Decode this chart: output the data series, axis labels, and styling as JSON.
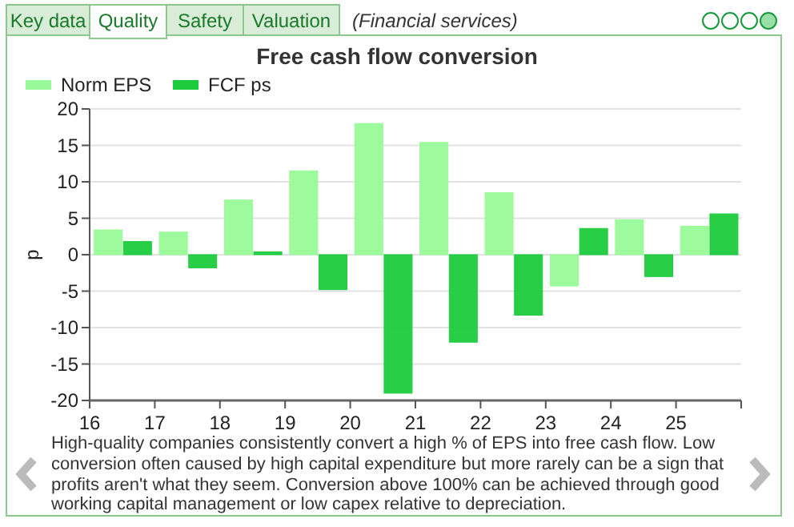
{
  "chart_data": {
    "type": "bar",
    "title": "Free cash flow conversion",
    "subtitle": "(Financial services)",
    "ylabel": "p",
    "x": [
      16.5,
      17.5,
      18.5,
      19.5,
      20.5,
      21.5,
      22.5,
      23.5,
      24.5,
      25.5
    ],
    "series": [
      {
        "name": "Norm EPS",
        "color": "#98fa98",
        "values": [
          3.4,
          3.1,
          7.5,
          11.5,
          18,
          15.4,
          8.5,
          -4.3,
          4.8,
          3.9
        ]
      },
      {
        "name": "FCF ps",
        "color": "#1ccc3c",
        "values": [
          1.8,
          -1.8,
          0.4,
          -4.8,
          -19,
          -12,
          -8.3,
          3.6,
          -3,
          5.6
        ]
      }
    ],
    "xlim": [
      16,
      26
    ],
    "xticks": [
      16,
      17,
      18,
      19,
      20,
      21,
      22,
      23,
      24,
      25
    ],
    "ylim": [
      -20,
      20
    ],
    "yticks": [
      -20,
      -15,
      -10,
      -5,
      0,
      5,
      10,
      15,
      20
    ],
    "grid": "y",
    "legend": "top left",
    "annotations": [
      "Key data",
      "Quality",
      "Safety",
      "Valuation",
      "High-quality companies consistently convert a high % of EPS into free cash flow. Low conversion often caused by high capital expenditure but more rarely can be a sign that profits aren't what they seem. Conversion above 100% can be achieved through good working capital management or low capex relative to depreciation."
    ]
  }
}
